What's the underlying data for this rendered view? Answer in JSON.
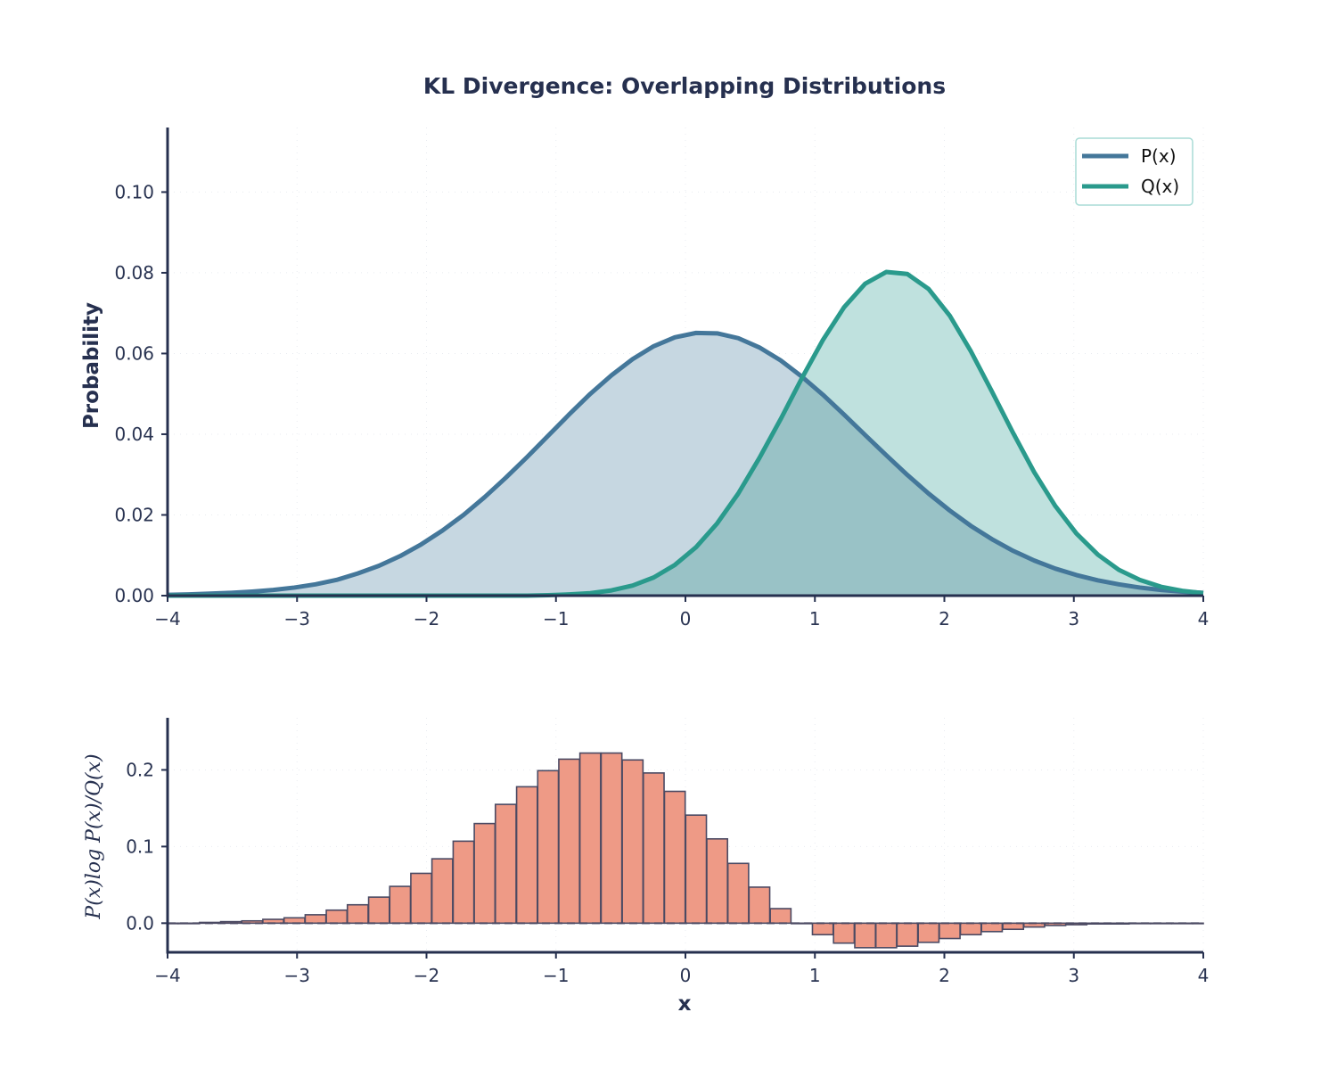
{
  "title": "KL Divergence: Overlapping Distributions",
  "colors": {
    "p_line": "#44779a",
    "q_line": "#2a9a8c",
    "p_fill": "#c6d7e1",
    "q_fill": "#bfe1de",
    "overlap_fill": "#99c2c6",
    "bar_fill": "#ee9a86",
    "bar_edge": "#4b4a63",
    "axis": "#26304f",
    "legend_border": "#a8dcd6"
  },
  "chart_data": [
    {
      "type": "area",
      "title": "KL Divergence: Overlapping Distributions",
      "xlabel": "",
      "ylabel": "Probability",
      "xlim": [
        -4,
        4
      ],
      "ylim": [
        0,
        0.116
      ],
      "grid": true,
      "legend_position": "top-right",
      "xticks": [
        "−4",
        "−3",
        "−2",
        "−1",
        "0",
        "1",
        "2",
        "3",
        "4"
      ],
      "yticks": [
        "0.00",
        "0.02",
        "0.04",
        "0.06",
        "0.08",
        "0.10"
      ],
      "x": [
        -4.0,
        -3.837,
        -3.673,
        -3.51,
        -3.347,
        -3.184,
        -3.02,
        -2.857,
        -2.694,
        -2.531,
        -2.367,
        -2.204,
        -2.041,
        -1.878,
        -1.714,
        -1.551,
        -1.388,
        -1.224,
        -1.061,
        -0.898,
        -0.735,
        -0.571,
        -0.408,
        -0.245,
        -0.082,
        0.082,
        0.245,
        0.408,
        0.571,
        0.735,
        0.898,
        1.061,
        1.224,
        1.388,
        1.551,
        1.714,
        1.878,
        2.041,
        2.204,
        2.367,
        2.531,
        2.694,
        2.857,
        3.02,
        3.184,
        3.347,
        3.51,
        3.673,
        3.837,
        4.0
      ],
      "series": [
        {
          "name": "P(x)",
          "values": [
            0.0002,
            0.0003,
            0.0005,
            0.0007,
            0.001,
            0.0014,
            0.002,
            0.0028,
            0.0039,
            0.0055,
            0.0074,
            0.0098,
            0.0127,
            0.0161,
            0.02,
            0.0244,
            0.0292,
            0.0343,
            0.0396,
            0.0449,
            0.05,
            0.0546,
            0.0586,
            0.0618,
            0.064,
            0.0651,
            0.065,
            0.0638,
            0.0615,
            0.0583,
            0.0543,
            0.0498,
            0.0449,
            0.0398,
            0.0348,
            0.0299,
            0.0253,
            0.0211,
            0.0173,
            0.014,
            0.0111,
            0.0087,
            0.0067,
            0.0051,
            0.0038,
            0.0028,
            0.002,
            0.0014,
            0.001,
            0.0007
          ]
        },
        {
          "name": "Q(x)",
          "values": [
            0.0,
            0.0,
            0.0,
            0.0,
            0.0,
            0.0,
            0.0,
            0.0,
            0.0,
            0.0,
            0.0,
            0.0,
            0.0,
            0.0,
            0.0,
            0.0,
            0.0,
            0.0,
            0.0001,
            0.0003,
            0.0006,
            0.0013,
            0.0025,
            0.0045,
            0.0076,
            0.012,
            0.0179,
            0.0253,
            0.0341,
            0.0437,
            0.0538,
            0.0633,
            0.0714,
            0.0773,
            0.0802,
            0.0797,
            0.076,
            0.0694,
            0.0606,
            0.0506,
            0.0403,
            0.0306,
            0.0222,
            0.0154,
            0.0102,
            0.0064,
            0.0039,
            0.0022,
            0.0012,
            0.0006
          ]
        }
      ]
    },
    {
      "type": "bar",
      "title": "",
      "xlabel": "x",
      "ylabel": "P(x)log P(x)/Q(x)",
      "xlim": [
        -4,
        4
      ],
      "ylim": [
        -0.038,
        0.268
      ],
      "grid": true,
      "xticks": [
        "−4",
        "−3",
        "−2",
        "−1",
        "0",
        "1",
        "2",
        "3",
        "4"
      ],
      "yticks": [
        "0.0",
        "0.1",
        "0.2"
      ],
      "zero_line": "dashed",
      "x": [
        -4.0,
        -3.837,
        -3.673,
        -3.51,
        -3.347,
        -3.184,
        -3.02,
        -2.857,
        -2.694,
        -2.531,
        -2.367,
        -2.204,
        -2.041,
        -1.878,
        -1.714,
        -1.551,
        -1.388,
        -1.224,
        -1.061,
        -0.898,
        -0.735,
        -0.571,
        -0.408,
        -0.245,
        -0.082,
        0.082,
        0.245,
        0.408,
        0.571,
        0.735,
        0.898,
        1.061,
        1.224,
        1.388,
        1.551,
        1.714,
        1.878,
        2.041,
        2.204,
        2.367,
        2.531,
        2.694,
        2.857,
        3.02,
        3.184,
        3.347,
        3.51,
        3.673,
        3.837,
        4.0
      ],
      "values": [
        0.0,
        0.0,
        0.001,
        0.002,
        0.003,
        0.005,
        0.007,
        0.011,
        0.017,
        0.024,
        0.034,
        0.048,
        0.065,
        0.084,
        0.107,
        0.13,
        0.155,
        0.178,
        0.199,
        0.214,
        0.222,
        0.222,
        0.213,
        0.196,
        0.172,
        0.141,
        0.11,
        0.078,
        0.047,
        0.019,
        0.0,
        -0.015,
        -0.026,
        -0.032,
        -0.032,
        -0.03,
        -0.025,
        -0.02,
        -0.015,
        -0.011,
        -0.008,
        -0.005,
        -0.003,
        -0.002,
        -0.001,
        -0.001,
        0.0,
        0.0,
        0.0,
        0.0
      ]
    }
  ]
}
